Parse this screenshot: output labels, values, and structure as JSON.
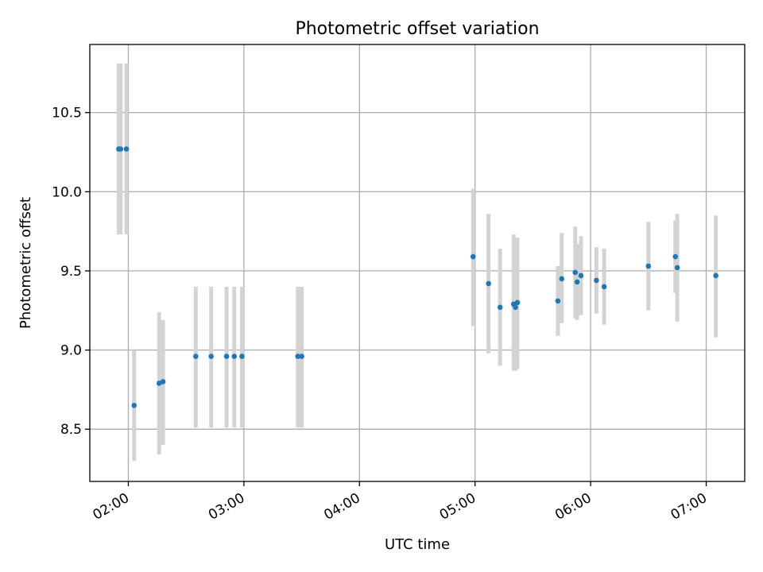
{
  "chart_data": {
    "type": "scatter",
    "title": "Photometric offset variation",
    "xlabel": "UTC time",
    "ylabel": "Photometric offset",
    "xlim": [
      "01:40",
      "07:20"
    ],
    "ylim": [
      8.17,
      10.93
    ],
    "x_ticks": [
      "02:00",
      "03:00",
      "04:00",
      "05:00",
      "06:00",
      "07:00"
    ],
    "y_ticks": [
      "8.5",
      "9.0",
      "9.5",
      "10.0",
      "10.5"
    ],
    "grid": true,
    "colors": {
      "point": "#1f77b4",
      "errorbar": "#d3d3d3",
      "grid": "#b0b0b0"
    },
    "points": [
      {
        "x": "01:55",
        "y": 10.27,
        "ylow": 9.73,
        "yhigh": 10.81
      },
      {
        "x": "01:56",
        "y": 10.27,
        "ylow": 9.73,
        "yhigh": 10.81
      },
      {
        "x": "01:59",
        "y": 10.27,
        "ylow": 9.73,
        "yhigh": 10.81
      },
      {
        "x": "02:03",
        "y": 8.65,
        "ylow": 8.3,
        "yhigh": 9.0
      },
      {
        "x": "02:16",
        "y": 8.79,
        "ylow": 8.34,
        "yhigh": 9.24
      },
      {
        "x": "02:18",
        "y": 8.8,
        "ylow": 8.4,
        "yhigh": 9.19
      },
      {
        "x": "02:35",
        "y": 8.96,
        "ylow": 8.51,
        "yhigh": 9.4
      },
      {
        "x": "02:43",
        "y": 8.96,
        "ylow": 8.51,
        "yhigh": 9.4
      },
      {
        "x": "02:51",
        "y": 8.96,
        "ylow": 8.51,
        "yhigh": 9.4
      },
      {
        "x": "02:55",
        "y": 8.96,
        "ylow": 8.51,
        "yhigh": 9.4
      },
      {
        "x": "02:59",
        "y": 8.96,
        "ylow": 8.51,
        "yhigh": 9.4
      },
      {
        "x": "03:28",
        "y": 8.96,
        "ylow": 8.51,
        "yhigh": 9.4
      },
      {
        "x": "03:30",
        "y": 8.96,
        "ylow": 8.51,
        "yhigh": 9.4
      },
      {
        "x": "04:59",
        "y": 9.59,
        "ylow": 9.15,
        "yhigh": 10.02
      },
      {
        "x": "05:07",
        "y": 9.42,
        "ylow": 8.98,
        "yhigh": 9.86
      },
      {
        "x": "05:13",
        "y": 9.27,
        "ylow": 8.9,
        "yhigh": 9.64
      },
      {
        "x": "05:20",
        "y": 9.29,
        "ylow": 8.87,
        "yhigh": 9.73
      },
      {
        "x": "05:21",
        "y": 9.27,
        "ylow": 8.87,
        "yhigh": 9.71
      },
      {
        "x": "05:22",
        "y": 9.3,
        "ylow": 8.88,
        "yhigh": 9.71
      },
      {
        "x": "05:43",
        "y": 9.31,
        "ylow": 9.09,
        "yhigh": 9.53
      },
      {
        "x": "05:45",
        "y": 9.45,
        "ylow": 9.17,
        "yhigh": 9.74
      },
      {
        "x": "05:52",
        "y": 9.49,
        "ylow": 9.2,
        "yhigh": 9.78
      },
      {
        "x": "05:53",
        "y": 9.43,
        "ylow": 9.19,
        "yhigh": 9.67
      },
      {
        "x": "05:55",
        "y": 9.47,
        "ylow": 9.22,
        "yhigh": 9.72
      },
      {
        "x": "06:03",
        "y": 9.44,
        "ylow": 9.23,
        "yhigh": 9.65
      },
      {
        "x": "06:07",
        "y": 9.4,
        "ylow": 9.16,
        "yhigh": 9.64
      },
      {
        "x": "06:30",
        "y": 9.53,
        "ylow": 9.25,
        "yhigh": 9.81
      },
      {
        "x": "06:44",
        "y": 9.59,
        "ylow": 9.36,
        "yhigh": 9.82
      },
      {
        "x": "06:45",
        "y": 9.52,
        "ylow": 9.18,
        "yhigh": 9.86
      },
      {
        "x": "07:05",
        "y": 9.47,
        "ylow": 9.08,
        "yhigh": 9.85
      }
    ]
  }
}
